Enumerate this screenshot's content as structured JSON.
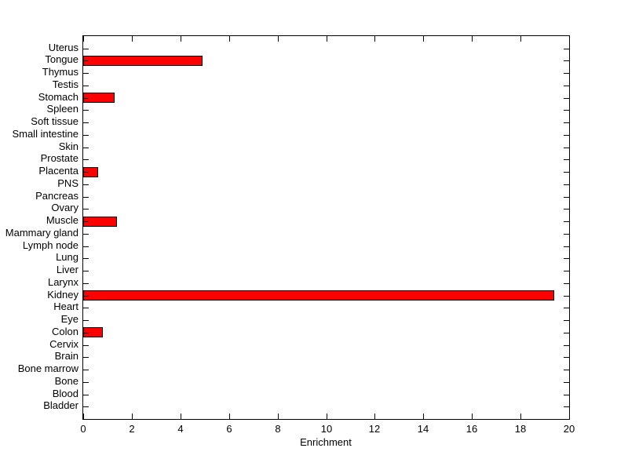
{
  "figure": {
    "background_color": "#ffffff",
    "plot_background_color": "#ffffff",
    "axis_color": "#000000"
  },
  "chart_data": {
    "type": "bar",
    "orientation": "horizontal",
    "title": "",
    "xlabel": "Enrichment",
    "ylabel": "",
    "xlim": [
      0,
      20
    ],
    "xticks": [
      0,
      2,
      4,
      6,
      8,
      10,
      12,
      14,
      16,
      18,
      20
    ],
    "grid": false,
    "legend": null,
    "bar_color": "#ff0000",
    "bar_edge_color": "#000000",
    "categories_top_to_bottom": [
      "Uterus",
      "Tongue",
      "Thymus",
      "Testis",
      "Stomach",
      "Spleen",
      "Soft tissue",
      "Small intestine",
      "Skin",
      "Prostate",
      "Placenta",
      "PNS",
      "Pancreas",
      "Ovary",
      "Muscle",
      "Mammary gland",
      "Lymph node",
      "Lung",
      "Liver",
      "Larynx",
      "Kidney",
      "Heart",
      "Eye",
      "Colon",
      "Cervix",
      "Brain",
      "Bone marrow",
      "Bone",
      "Blood",
      "Bladder"
    ],
    "values_top_to_bottom": [
      0,
      4.9,
      0,
      0,
      1.3,
      0,
      0,
      0,
      0,
      0,
      0.6,
      0,
      0,
      0,
      1.4,
      0,
      0,
      0,
      0,
      0,
      19.4,
      0,
      0,
      0.8,
      0,
      0,
      0,
      0,
      0,
      0
    ]
  }
}
